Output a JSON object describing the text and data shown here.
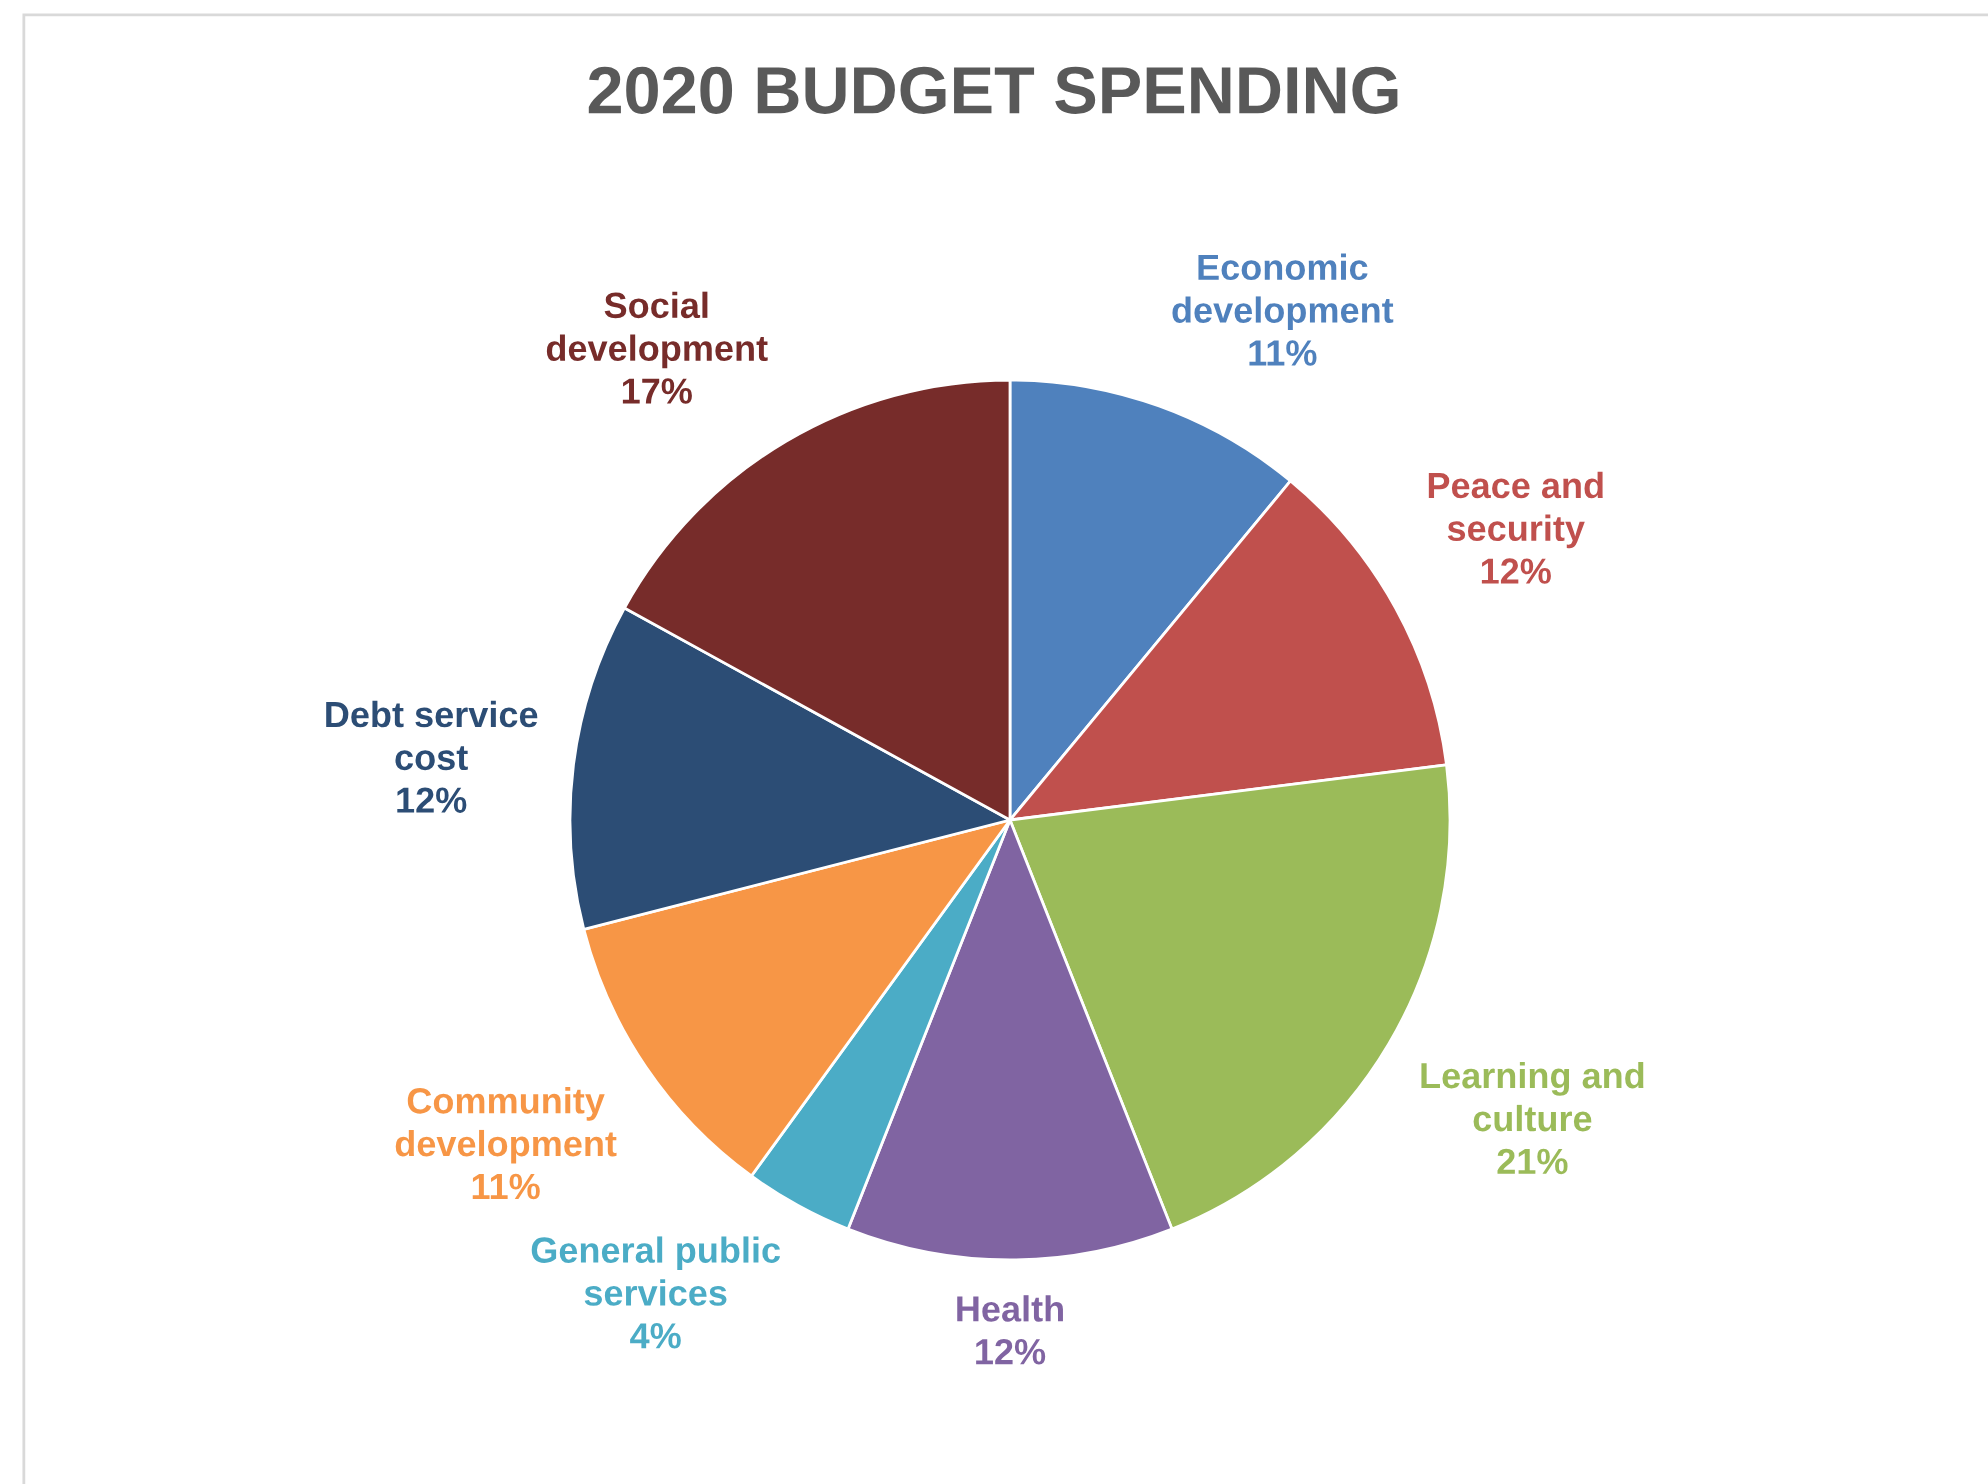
{
  "chart_data": {
    "type": "pie",
    "title": "2020 BUDGET SPENDING",
    "categories": [
      "Economic\ndevelopment",
      "Peace and\nsecurity",
      "Learning and\nculture",
      "Health",
      "General public\nservices",
      "Community\ndevelopment",
      "Debt service\ncost",
      "Social\ndevelopment"
    ],
    "values": [
      11,
      12,
      21,
      12,
      4,
      11,
      12,
      17
    ],
    "value_labels": [
      "11%",
      "12%",
      "21%",
      "12%",
      "4%",
      "11%",
      "12%",
      "17%"
    ],
    "colors": [
      "#4f81bd",
      "#c0504d",
      "#9bbb59",
      "#8064a2",
      "#4bacc6",
      "#f79646",
      "#2c4d75",
      "#772c2a"
    ]
  }
}
